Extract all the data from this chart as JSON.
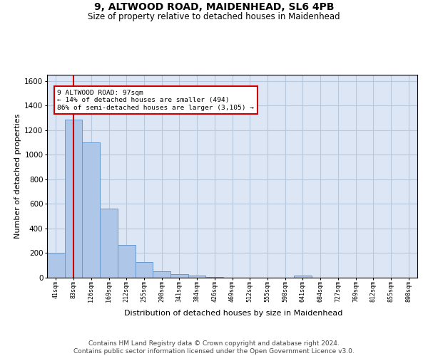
{
  "title": "9, ALTWOOD ROAD, MAIDENHEAD, SL6 4PB",
  "subtitle": "Size of property relative to detached houses in Maidenhead",
  "xlabel": "Distribution of detached houses by size in Maidenhead",
  "ylabel": "Number of detached properties",
  "categories": [
    "41sqm",
    "83sqm",
    "126sqm",
    "169sqm",
    "212sqm",
    "255sqm",
    "298sqm",
    "341sqm",
    "384sqm",
    "426sqm",
    "469sqm",
    "512sqm",
    "555sqm",
    "598sqm",
    "641sqm",
    "684sqm",
    "727sqm",
    "769sqm",
    "812sqm",
    "855sqm",
    "898sqm"
  ],
  "values": [
    197,
    1285,
    1100,
    560,
    265,
    125,
    55,
    30,
    18,
    5,
    0,
    0,
    0,
    0,
    18,
    0,
    0,
    0,
    0,
    0,
    0
  ],
  "bar_color": "#aec6e8",
  "bar_edge_color": "#6699cc",
  "vline_x": 1.0,
  "vline_color": "#cc0000",
  "annotation_text": "9 ALTWOOD ROAD: 97sqm\n← 14% of detached houses are smaller (494)\n86% of semi-detached houses are larger (3,105) →",
  "annotation_box_facecolor": "#ffffff",
  "annotation_box_edgecolor": "#cc0000",
  "ylim_max": 1650,
  "yticks": [
    0,
    200,
    400,
    600,
    800,
    1000,
    1200,
    1400,
    1600
  ],
  "plot_bg_color": "#dce6f5",
  "fig_bg_color": "#ffffff",
  "grid_color": "#b8c8dc",
  "title_fontsize": 10,
  "subtitle_fontsize": 8.5,
  "axis_label_fontsize": 8,
  "ytick_fontsize": 7.5,
  "xtick_fontsize": 6,
  "footer_fontsize": 6.5,
  "footer_line1": "Contains HM Land Registry data © Crown copyright and database right 2024.",
  "footer_line2": "Contains public sector information licensed under the Open Government Licence v3.0."
}
